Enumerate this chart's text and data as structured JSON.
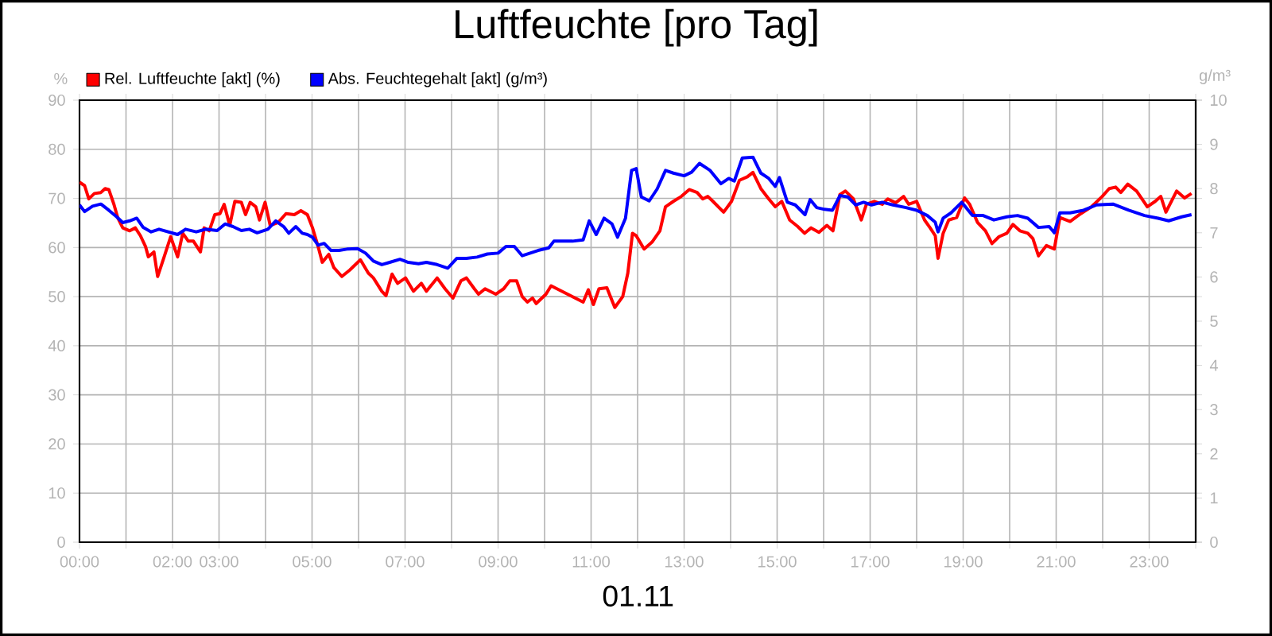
{
  "chart_data": {
    "type": "line",
    "title": "Luftfeuchte [pro Tag]",
    "xlabel": "01.11",
    "ylabel": "%",
    "y2label": "g/m³",
    "xlim": [
      0,
      24
    ],
    "xticks": [
      {
        "value": 0,
        "label": "00:00"
      },
      {
        "value": 1,
        "label": null
      },
      {
        "value": 2,
        "label": "02:00"
      },
      {
        "value": 3,
        "label": "03:00"
      },
      {
        "value": 4,
        "label": null
      },
      {
        "value": 5,
        "label": "05:00"
      },
      {
        "value": 6,
        "label": null
      },
      {
        "value": 7,
        "label": "07:00"
      },
      {
        "value": 8,
        "label": null
      },
      {
        "value": 9,
        "label": "09:00"
      },
      {
        "value": 10,
        "label": null
      },
      {
        "value": 11,
        "label": "11:00"
      },
      {
        "value": 12,
        "label": null
      },
      {
        "value": 13,
        "label": "13:00"
      },
      {
        "value": 14,
        "label": null
      },
      {
        "value": 15,
        "label": "15:00"
      },
      {
        "value": 16,
        "label": null
      },
      {
        "value": 17,
        "label": "17:00"
      },
      {
        "value": 18,
        "label": null
      },
      {
        "value": 19,
        "label": "19:00"
      },
      {
        "value": 20,
        "label": null
      },
      {
        "value": 21,
        "label": "21:00"
      },
      {
        "value": 22,
        "label": null
      },
      {
        "value": 23,
        "label": "23:00"
      },
      {
        "value": 24,
        "label": null
      }
    ],
    "ylim": [
      0,
      90
    ],
    "yticks": [
      0,
      10,
      20,
      30,
      40,
      50,
      60,
      70,
      80,
      90
    ],
    "y2lim": [
      0,
      10
    ],
    "y2ticks": [
      0,
      1,
      2,
      3,
      4,
      5,
      6,
      7,
      8,
      9,
      10
    ],
    "grid": true,
    "legend": "top left",
    "marker": "none",
    "line_style": "solid",
    "series": [
      {
        "name": "Rel. Luftfeuchte [akt] (%)",
        "color": "#ff0000",
        "x": [
          0,
          0.11,
          0.2,
          0.32,
          0.46,
          0.55,
          0.63,
          0.74,
          0.82,
          0.93,
          1.08,
          1.2,
          1.31,
          1.42,
          1.48,
          1.6,
          1.68,
          1.82,
          1.96,
          2.11,
          2.22,
          2.34,
          2.45,
          2.6,
          2.68,
          2.79,
          2.91,
          3.02,
          3.11,
          3.23,
          3.34,
          3.48,
          3.57,
          3.67,
          3.79,
          3.87,
          3.99,
          4.1,
          4.27,
          4.44,
          4.62,
          4.76,
          4.9,
          5.01,
          5.13,
          5.22,
          5.36,
          5.47,
          5.64,
          5.81,
          6.04,
          6.21,
          6.32,
          6.5,
          6.59,
          6.72,
          6.84,
          7.01,
          7.18,
          7.35,
          7.46,
          7.69,
          7.86,
          8.03,
          8.2,
          8.32,
          8.49,
          8.58,
          8.72,
          8.95,
          9.12,
          9.25,
          9.4,
          9.52,
          9.63,
          9.74,
          9.82,
          10.03,
          10.14,
          10.37,
          10.6,
          10.83,
          10.94,
          11.05,
          11.17,
          11.34,
          11.51,
          11.68,
          11.79,
          11.89,
          11.97,
          12.14,
          12.31,
          12.48,
          12.6,
          12.77,
          12.94,
          13.11,
          13.28,
          13.4,
          13.51,
          13.62,
          13.85,
          14.02,
          14.19,
          14.36,
          14.48,
          14.65,
          14.82,
          14.96,
          15.1,
          15.27,
          15.44,
          15.59,
          15.73,
          15.9,
          16.07,
          16.2,
          16.35,
          16.47,
          16.64,
          16.81,
          16.92,
          17.09,
          17.26,
          17.38,
          17.55,
          17.72,
          17.83,
          18,
          18.17,
          18.29,
          18.4,
          18.46,
          18.57,
          18.69,
          18.86,
          19.03,
          19.14,
          19.31,
          19.48,
          19.62,
          19.77,
          19.94,
          20.07,
          20.22,
          20.39,
          20.5,
          20.62,
          20.79,
          20.96,
          21.08,
          21.3,
          21.53,
          21.76,
          21.99,
          22.14,
          22.28,
          22.39,
          22.54,
          22.73,
          22.96,
          23.13,
          23.25,
          23.36,
          23.59,
          23.76,
          23.91
        ],
        "values": [
          73.3,
          72.6,
          69.9,
          71,
          71.2,
          72,
          71.8,
          68.8,
          66.1,
          64,
          63.4,
          64,
          62.4,
          60.2,
          58.1,
          59.1,
          54.1,
          58.1,
          62.2,
          58.1,
          62.9,
          61.3,
          61.3,
          59.1,
          64,
          63.4,
          66.7,
          66.9,
          68.8,
          64.5,
          69.4,
          69.2,
          66.7,
          69.2,
          68.3,
          65.6,
          69.2,
          64.5,
          65.1,
          66.9,
          66.7,
          67.5,
          66.7,
          64,
          60.2,
          57,
          58.6,
          55.9,
          54.1,
          55.4,
          57.5,
          54.8,
          53.8,
          51.1,
          50.2,
          54.6,
          52.7,
          53.8,
          51.1,
          52.7,
          51.1,
          53.8,
          51.6,
          49.7,
          53.2,
          53.8,
          51.6,
          50.5,
          51.6,
          50.5,
          51.6,
          53.2,
          53.2,
          50,
          48.9,
          49.7,
          48.6,
          50.5,
          52.2,
          51.1,
          50,
          48.9,
          51.4,
          48.4,
          51.6,
          51.8,
          47.8,
          50,
          54.8,
          62.9,
          62.4,
          59.7,
          61.1,
          63.4,
          68.3,
          69.4,
          70.4,
          71.8,
          71.2,
          69.9,
          70.4,
          69.4,
          67.2,
          69.4,
          73.7,
          74.4,
          75.3,
          72,
          69.9,
          68.3,
          69.4,
          65.6,
          64.3,
          62.9,
          64,
          63.1,
          64.5,
          63.4,
          70.8,
          71.5,
          69.9,
          65.6,
          68.8,
          69.4,
          68.8,
          69.9,
          69.1,
          70.4,
          68.8,
          69.4,
          65.6,
          64,
          62.4,
          57.8,
          62.9,
          65.6,
          66.1,
          70.1,
          68.8,
          65.1,
          63.4,
          60.8,
          62.2,
          62.9,
          64.7,
          63.4,
          62.9,
          61.8,
          58.3,
          60.4,
          59.7,
          66.1,
          65.3,
          66.9,
          68.3,
          70.4,
          72,
          72.3,
          71.2,
          72.9,
          71.5,
          68.3,
          69.4,
          70.4,
          67.2,
          71.5,
          70.1,
          71
        ]
      },
      {
        "name": "Abs. Feuchtegehalt [akt] (g/m³)",
        "color": "#0000ff",
        "axis": "y2",
        "x": [
          0,
          0.11,
          0.28,
          0.46,
          0.63,
          0.8,
          0.93,
          1.08,
          1.23,
          1.37,
          1.54,
          1.71,
          1.91,
          2.11,
          2.28,
          2.51,
          2.71,
          2.96,
          3.13,
          3.3,
          3.48,
          3.65,
          3.82,
          4.05,
          4.22,
          4.39,
          4.5,
          4.65,
          4.79,
          4.9,
          5.01,
          5.13,
          5.26,
          5.41,
          5.58,
          5.75,
          5.98,
          6.15,
          6.32,
          6.5,
          6.67,
          6.89,
          7.07,
          7.29,
          7.46,
          7.69,
          7.92,
          8.11,
          8.32,
          8.55,
          8.77,
          9,
          9.17,
          9.35,
          9.52,
          9.69,
          9.86,
          10.09,
          10.2,
          10.37,
          10.6,
          10.83,
          10.96,
          11.11,
          11.28,
          11.45,
          11.57,
          11.74,
          11.87,
          11.97,
          12.08,
          12.25,
          12.42,
          12.6,
          12.77,
          13,
          13.16,
          13.33,
          13.56,
          13.79,
          13.96,
          14.08,
          14.25,
          14.48,
          14.65,
          14.82,
          14.96,
          15.05,
          15.22,
          15.39,
          15.6,
          15.71,
          15.85,
          16.02,
          16.19,
          16.35,
          16.52,
          16.69,
          16.86,
          17.03,
          17.26,
          17.49,
          17.77,
          18,
          18.23,
          18.4,
          18.46,
          18.57,
          18.74,
          18.97,
          19.2,
          19.43,
          19.66,
          19.94,
          20.17,
          20.39,
          20.62,
          20.85,
          20.96,
          21.08,
          21.3,
          21.59,
          21.87,
          22.22,
          22.56,
          22.9,
          23.19,
          23.42,
          23.7,
          23.91
        ],
        "values": [
          7.63,
          7.48,
          7.6,
          7.65,
          7.51,
          7.36,
          7.23,
          7.27,
          7.33,
          7.12,
          7.02,
          7.08,
          7.02,
          6.96,
          7.08,
          7.02,
          7.08,
          7.05,
          7.2,
          7.14,
          7.05,
          7.08,
          7,
          7.08,
          7.27,
          7.14,
          6.99,
          7.14,
          6.99,
          6.96,
          6.9,
          6.72,
          6.76,
          6.6,
          6.6,
          6.63,
          6.64,
          6.54,
          6.36,
          6.28,
          6.33,
          6.4,
          6.33,
          6.3,
          6.33,
          6.28,
          6.2,
          6.42,
          6.42,
          6.45,
          6.52,
          6.54,
          6.69,
          6.69,
          6.48,
          6.54,
          6.6,
          6.66,
          6.81,
          6.81,
          6.81,
          6.84,
          7.27,
          6.96,
          7.33,
          7.2,
          6.9,
          7.33,
          8.41,
          8.45,
          7.81,
          7.72,
          7.99,
          8.41,
          8.35,
          8.29,
          8.37,
          8.57,
          8.41,
          8.11,
          8.23,
          8.17,
          8.69,
          8.71,
          8.35,
          8.23,
          8.05,
          8.25,
          7.69,
          7.63,
          7.41,
          7.75,
          7.57,
          7.53,
          7.51,
          7.84,
          7.81,
          7.63,
          7.69,
          7.63,
          7.69,
          7.63,
          7.57,
          7.51,
          7.39,
          7.24,
          7.02,
          7.33,
          7.45,
          7.69,
          7.39,
          7.39,
          7.29,
          7.36,
          7.39,
          7.33,
          7.12,
          7.14,
          7,
          7.45,
          7.45,
          7.51,
          7.63,
          7.65,
          7.51,
          7.39,
          7.33,
          7.27,
          7.36,
          7.41
        ]
      }
    ]
  }
}
